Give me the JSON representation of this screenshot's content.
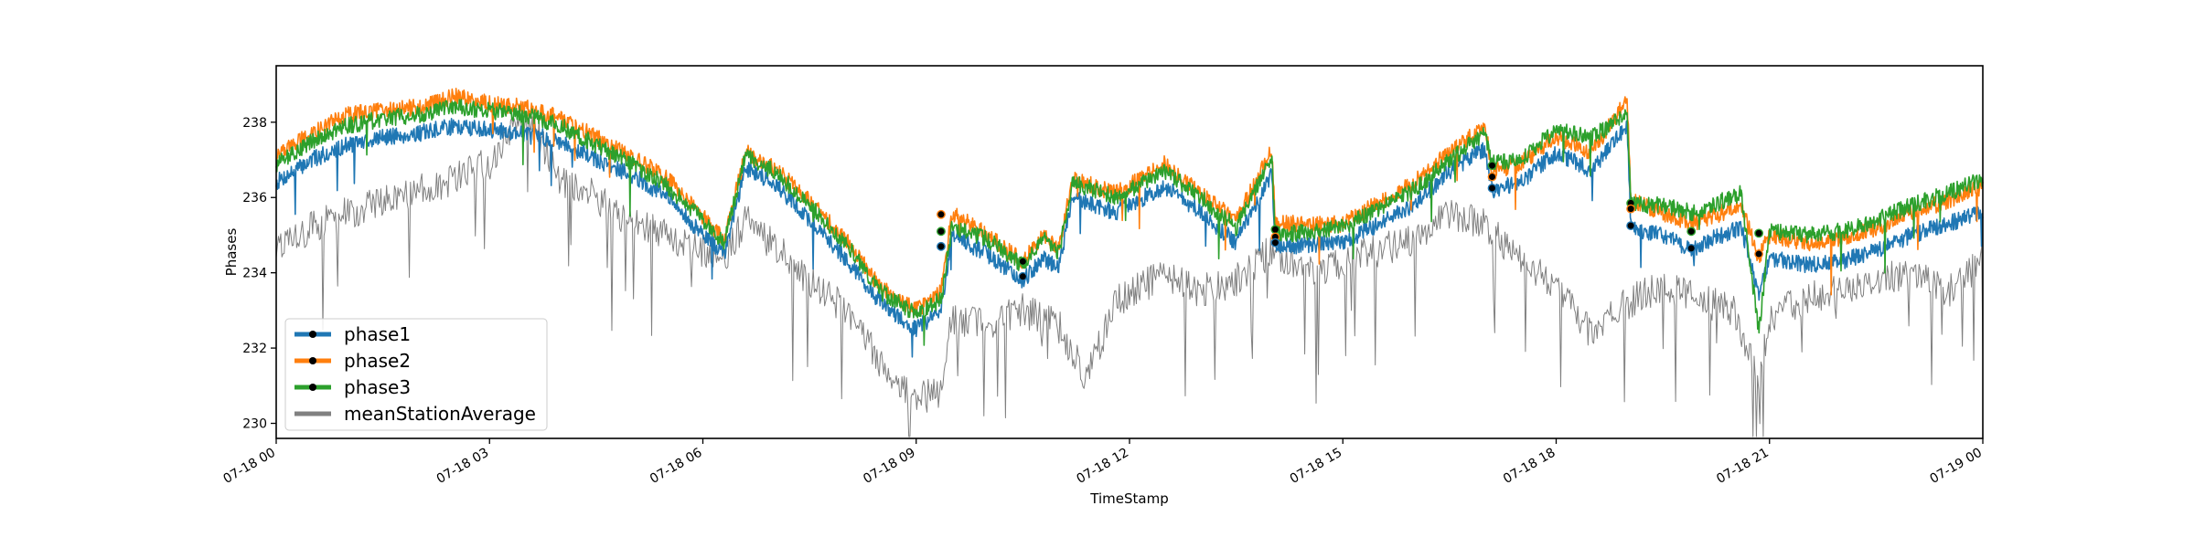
{
  "chart_data": {
    "type": "line",
    "xlabel": "TimeStamp",
    "ylabel": "Phases",
    "x_range": [
      "07-18 00",
      "07-19 00"
    ],
    "ylim": [
      229.6,
      239.5
    ],
    "x_ticks": [
      {
        "label": "07-18 00",
        "hour": 0
      },
      {
        "label": "07-18 03",
        "hour": 3
      },
      {
        "label": "07-18 06",
        "hour": 6
      },
      {
        "label": "07-18 09",
        "hour": 9
      },
      {
        "label": "07-18 12",
        "hour": 12
      },
      {
        "label": "07-18 15",
        "hour": 15
      },
      {
        "label": "07-18 18",
        "hour": 18
      },
      {
        "label": "07-18 21",
        "hour": 21
      },
      {
        "label": "07-19 00",
        "hour": 24
      }
    ],
    "y_ticks": [
      230,
      232,
      234,
      236,
      238
    ],
    "grid": false,
    "legend_position": "lower-left",
    "series": [
      {
        "name": "phase1",
        "color": "#1f77b4",
        "points": [
          [
            0,
            236.4
          ],
          [
            0.5,
            237.0
          ],
          [
            1,
            237.4
          ],
          [
            1.5,
            237.6
          ],
          [
            2,
            237.7
          ],
          [
            2.5,
            237.9
          ],
          [
            3,
            237.8
          ],
          [
            3.5,
            237.7
          ],
          [
            4,
            237.5
          ],
          [
            4.5,
            237.0
          ],
          [
            5,
            236.6
          ],
          [
            5.5,
            236.0
          ],
          [
            6,
            235.0
          ],
          [
            6.3,
            234.5
          ],
          [
            6.6,
            236.8
          ],
          [
            7,
            236.4
          ],
          [
            7.5,
            235.4
          ],
          [
            8,
            234.4
          ],
          [
            8.5,
            233.2
          ],
          [
            9,
            232.5
          ],
          [
            9.35,
            233.0
          ],
          [
            9.5,
            235.0
          ],
          [
            10,
            234.5
          ],
          [
            10.5,
            233.8
          ],
          [
            10.8,
            234.4
          ],
          [
            11,
            234.1
          ],
          [
            11.2,
            236.0
          ],
          [
            11.8,
            235.6
          ],
          [
            12.5,
            236.3
          ],
          [
            13,
            235.6
          ],
          [
            13.5,
            234.8
          ],
          [
            14,
            236.6
          ],
          [
            14.05,
            234.7
          ],
          [
            15,
            234.8
          ],
          [
            16,
            235.8
          ],
          [
            16.5,
            236.7
          ],
          [
            17,
            237.3
          ],
          [
            17.1,
            236.2
          ],
          [
            17.5,
            236.4
          ],
          [
            18,
            237.2
          ],
          [
            18.5,
            236.7
          ],
          [
            19,
            237.9
          ],
          [
            19.05,
            235.2
          ],
          [
            19.5,
            235.0
          ],
          [
            19.9,
            234.6
          ],
          [
            20.2,
            234.9
          ],
          [
            20.6,
            235.2
          ],
          [
            20.85,
            233.4
          ],
          [
            21,
            234.4
          ],
          [
            21.5,
            234.2
          ],
          [
            22,
            234.3
          ],
          [
            22.5,
            234.6
          ],
          [
            23,
            235.0
          ],
          [
            23.5,
            235.3
          ],
          [
            24,
            235.6
          ]
        ]
      },
      {
        "name": "phase2",
        "color": "#ff7f0e",
        "points": [
          [
            0,
            237.1
          ],
          [
            0.5,
            237.7
          ],
          [
            1,
            238.2
          ],
          [
            1.5,
            238.3
          ],
          [
            2,
            238.4
          ],
          [
            2.5,
            238.7
          ],
          [
            3,
            238.5
          ],
          [
            3.5,
            238.4
          ],
          [
            4,
            238.1
          ],
          [
            4.5,
            237.6
          ],
          [
            5,
            237.1
          ],
          [
            5.5,
            236.5
          ],
          [
            6,
            235.5
          ],
          [
            6.3,
            234.9
          ],
          [
            6.6,
            237.2
          ],
          [
            7,
            236.8
          ],
          [
            7.5,
            235.9
          ],
          [
            8,
            234.9
          ],
          [
            8.5,
            233.6
          ],
          [
            9,
            233.0
          ],
          [
            9.35,
            233.5
          ],
          [
            9.5,
            235.6
          ],
          [
            10,
            235.0
          ],
          [
            10.5,
            234.3
          ],
          [
            10.8,
            235.0
          ],
          [
            11,
            234.6
          ],
          [
            11.2,
            236.5
          ],
          [
            11.8,
            236.1
          ],
          [
            12.5,
            236.9
          ],
          [
            13,
            236.1
          ],
          [
            13.5,
            235.4
          ],
          [
            14,
            237.3
          ],
          [
            14.05,
            235.3
          ],
          [
            15,
            235.3
          ],
          [
            16,
            236.4
          ],
          [
            16.5,
            237.2
          ],
          [
            17,
            237.9
          ],
          [
            17.1,
            236.7
          ],
          [
            17.5,
            236.9
          ],
          [
            18,
            237.6
          ],
          [
            18.5,
            237.2
          ],
          [
            19,
            238.6
          ],
          [
            19.05,
            235.9
          ],
          [
            19.5,
            235.6
          ],
          [
            19.9,
            235.3
          ],
          [
            20.2,
            235.5
          ],
          [
            20.6,
            235.8
          ],
          [
            20.85,
            234.4
          ],
          [
            21,
            235.0
          ],
          [
            21.5,
            234.8
          ],
          [
            22,
            234.9
          ],
          [
            22.5,
            235.2
          ],
          [
            23,
            235.6
          ],
          [
            23.5,
            235.9
          ],
          [
            24,
            236.3
          ]
        ]
      },
      {
        "name": "phase3",
        "color": "#2ca02c",
        "points": [
          [
            0,
            236.9
          ],
          [
            0.5,
            237.5
          ],
          [
            1,
            237.9
          ],
          [
            1.5,
            238.1
          ],
          [
            2,
            238.2
          ],
          [
            2.5,
            238.4
          ],
          [
            3,
            238.3
          ],
          [
            3.5,
            238.2
          ],
          [
            4,
            237.9
          ],
          [
            4.5,
            237.4
          ],
          [
            5,
            236.9
          ],
          [
            5.5,
            236.3
          ],
          [
            6,
            235.4
          ],
          [
            6.3,
            234.8
          ],
          [
            6.6,
            237.1
          ],
          [
            7,
            236.7
          ],
          [
            7.5,
            235.8
          ],
          [
            8,
            234.8
          ],
          [
            8.5,
            233.5
          ],
          [
            9,
            232.9
          ],
          [
            9.35,
            233.3
          ],
          [
            9.5,
            235.2
          ],
          [
            10,
            234.9
          ],
          [
            10.5,
            234.2
          ],
          [
            10.8,
            234.9
          ],
          [
            11,
            234.5
          ],
          [
            11.2,
            236.4
          ],
          [
            11.8,
            236.0
          ],
          [
            12.5,
            236.7
          ],
          [
            13,
            236.0
          ],
          [
            13.5,
            235.2
          ],
          [
            14,
            237.1
          ],
          [
            14.05,
            235.0
          ],
          [
            15,
            235.2
          ],
          [
            16,
            236.2
          ],
          [
            16.5,
            237.0
          ],
          [
            17,
            237.7
          ],
          [
            17.1,
            236.9
          ],
          [
            17.5,
            237.0
          ],
          [
            18,
            237.8
          ],
          [
            18.5,
            237.6
          ],
          [
            19,
            238.2
          ],
          [
            19.05,
            235.8
          ],
          [
            19.5,
            235.8
          ],
          [
            19.9,
            235.6
          ],
          [
            20.2,
            235.8
          ],
          [
            20.6,
            236.1
          ],
          [
            20.85,
            232.4
          ],
          [
            21,
            235.1
          ],
          [
            21.5,
            235.0
          ],
          [
            22,
            235.1
          ],
          [
            22.5,
            235.4
          ],
          [
            23,
            235.8
          ],
          [
            23.5,
            236.1
          ],
          [
            24,
            236.5
          ]
        ]
      },
      {
        "name": "meanStationAverage",
        "color": "#808080",
        "points": [
          [
            0,
            234.5
          ],
          [
            0.5,
            235.2
          ],
          [
            1,
            235.6
          ],
          [
            1.5,
            235.9
          ],
          [
            2,
            236.2
          ],
          [
            2.5,
            236.5
          ],
          [
            3,
            236.9
          ],
          [
            3.3,
            237.8
          ],
          [
            3.6,
            238.0
          ],
          [
            4,
            236.5
          ],
          [
            4.5,
            236.0
          ],
          [
            5,
            235.3
          ],
          [
            5.5,
            235.0
          ],
          [
            6,
            234.6
          ],
          [
            6.3,
            234.4
          ],
          [
            6.6,
            235.4
          ],
          [
            7,
            234.7
          ],
          [
            7.5,
            233.8
          ],
          [
            8,
            233.0
          ],
          [
            8.5,
            231.6
          ],
          [
            9,
            230.6
          ],
          [
            9.35,
            230.9
          ],
          [
            9.5,
            232.8
          ],
          [
            10,
            232.6
          ],
          [
            10.5,
            233.0
          ],
          [
            11,
            232.6
          ],
          [
            11.4,
            231.2
          ],
          [
            11.8,
            233.2
          ],
          [
            12.5,
            234.0
          ],
          [
            13,
            233.5
          ],
          [
            13.5,
            233.8
          ],
          [
            14,
            234.6
          ],
          [
            14.5,
            234.0
          ],
          [
            15,
            234.3
          ],
          [
            16,
            234.9
          ],
          [
            16.5,
            235.5
          ],
          [
            17,
            235.3
          ],
          [
            17.5,
            234.3
          ],
          [
            18,
            233.6
          ],
          [
            18.5,
            232.4
          ],
          [
            19,
            233.2
          ],
          [
            19.5,
            233.7
          ],
          [
            20,
            233.3
          ],
          [
            20.5,
            233.0
          ],
          [
            20.85,
            231.2
          ],
          [
            21,
            232.8
          ],
          [
            21.5,
            233.3
          ],
          [
            22,
            233.5
          ],
          [
            22.5,
            233.7
          ],
          [
            23,
            234.1
          ],
          [
            23.5,
            233.5
          ],
          [
            24,
            234.3
          ]
        ]
      }
    ],
    "markers": [
      {
        "x": 9.35,
        "y": 235.55,
        "color": "#ff7f0e"
      },
      {
        "x": 9.35,
        "y": 235.1,
        "color": "#2ca02c"
      },
      {
        "x": 9.35,
        "y": 234.7,
        "color": "#1f77b4"
      },
      {
        "x": 10.5,
        "y": 234.3,
        "color": "#2ca02c"
      },
      {
        "x": 10.5,
        "y": 233.9,
        "color": "#1f77b4"
      },
      {
        "x": 14.05,
        "y": 235.15,
        "color": "#2ca02c"
      },
      {
        "x": 14.05,
        "y": 234.95,
        "color": "#ff7f0e"
      },
      {
        "x": 14.05,
        "y": 234.8,
        "color": "#1f77b4"
      },
      {
        "x": 17.1,
        "y": 236.85,
        "color": "#2ca02c"
      },
      {
        "x": 17.1,
        "y": 236.55,
        "color": "#ff7f0e"
      },
      {
        "x": 17.1,
        "y": 236.25,
        "color": "#1f77b4"
      },
      {
        "x": 19.05,
        "y": 235.85,
        "color": "#2ca02c"
      },
      {
        "x": 19.05,
        "y": 235.7,
        "color": "#ff7f0e"
      },
      {
        "x": 19.05,
        "y": 235.25,
        "color": "#1f77b4"
      },
      {
        "x": 19.9,
        "y": 235.1,
        "color": "#2ca02c"
      },
      {
        "x": 19.9,
        "y": 234.65,
        "color": "#1f77b4"
      },
      {
        "x": 20.85,
        "y": 235.05,
        "color": "#2ca02c"
      },
      {
        "x": 20.85,
        "y": 234.5,
        "color": "#ff7f0e"
      }
    ]
  }
}
